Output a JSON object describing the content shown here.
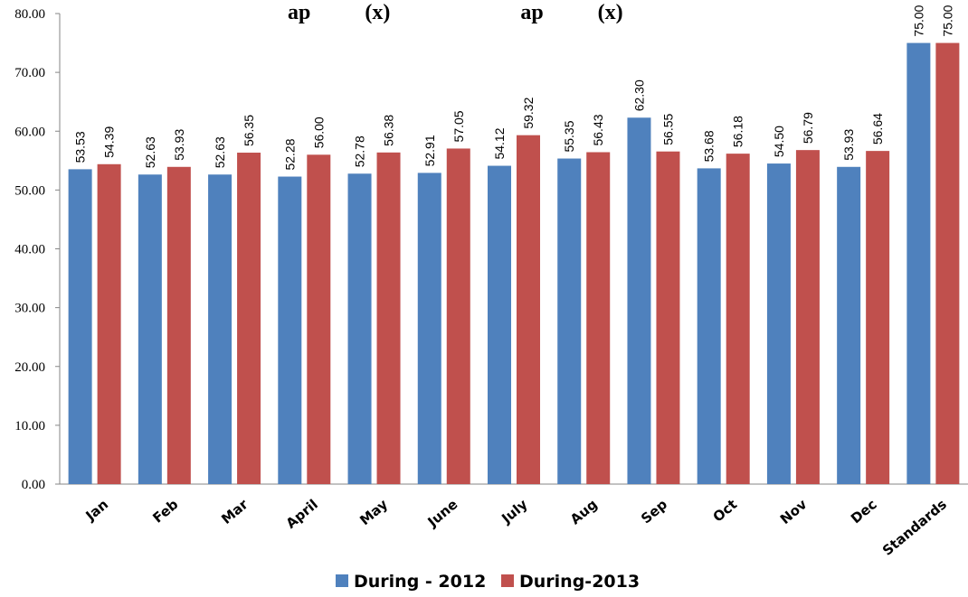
{
  "chart_data": {
    "type": "bar",
    "title": "",
    "visible_title_fragment": "ap          (x)                        ap          (x)",
    "categories": [
      "Jan",
      "Feb",
      "Mar",
      "April",
      "May",
      "June",
      "July",
      "Aug",
      "Sep",
      "Oct",
      "Nov",
      "Dec",
      "Standards"
    ],
    "series": [
      {
        "name": "During - 2012",
        "color": "#4F81BD",
        "values": [
          53.53,
          52.63,
          52.63,
          52.28,
          52.78,
          52.91,
          54.12,
          55.35,
          62.3,
          53.68,
          54.5,
          53.93,
          75.0
        ],
        "labels": [
          "53.53",
          "52.63",
          "52.63",
          "52.28",
          "52.78",
          "52.91",
          "54.12",
          "55.35",
          "62.30",
          "53.68",
          "54.50",
          "53.93",
          "75.00"
        ]
      },
      {
        "name": "During-2013",
        "color": "#C0504D",
        "values": [
          54.39,
          53.93,
          56.35,
          56.0,
          56.38,
          57.05,
          59.32,
          56.43,
          56.55,
          56.18,
          56.79,
          56.64,
          75.0
        ],
        "labels": [
          "54.39",
          "53.93",
          "56.35",
          "56.00",
          "56.38",
          "57.05",
          "59.32",
          "56.43",
          "56.55",
          "56.18",
          "56.79",
          "56.64",
          "75.00"
        ]
      }
    ],
    "ylim": [
      0,
      80
    ],
    "yticks": [
      0,
      10,
      20,
      30,
      40,
      50,
      60,
      70,
      80
    ],
    "ytick_labels": [
      "0.00",
      "10.00",
      "20.00",
      "30.00",
      "40.00",
      "50.00",
      "60.00",
      "70.00",
      "80.00"
    ],
    "xlabel": "",
    "ylabel": "",
    "grid": false,
    "legend_position": "bottom"
  }
}
